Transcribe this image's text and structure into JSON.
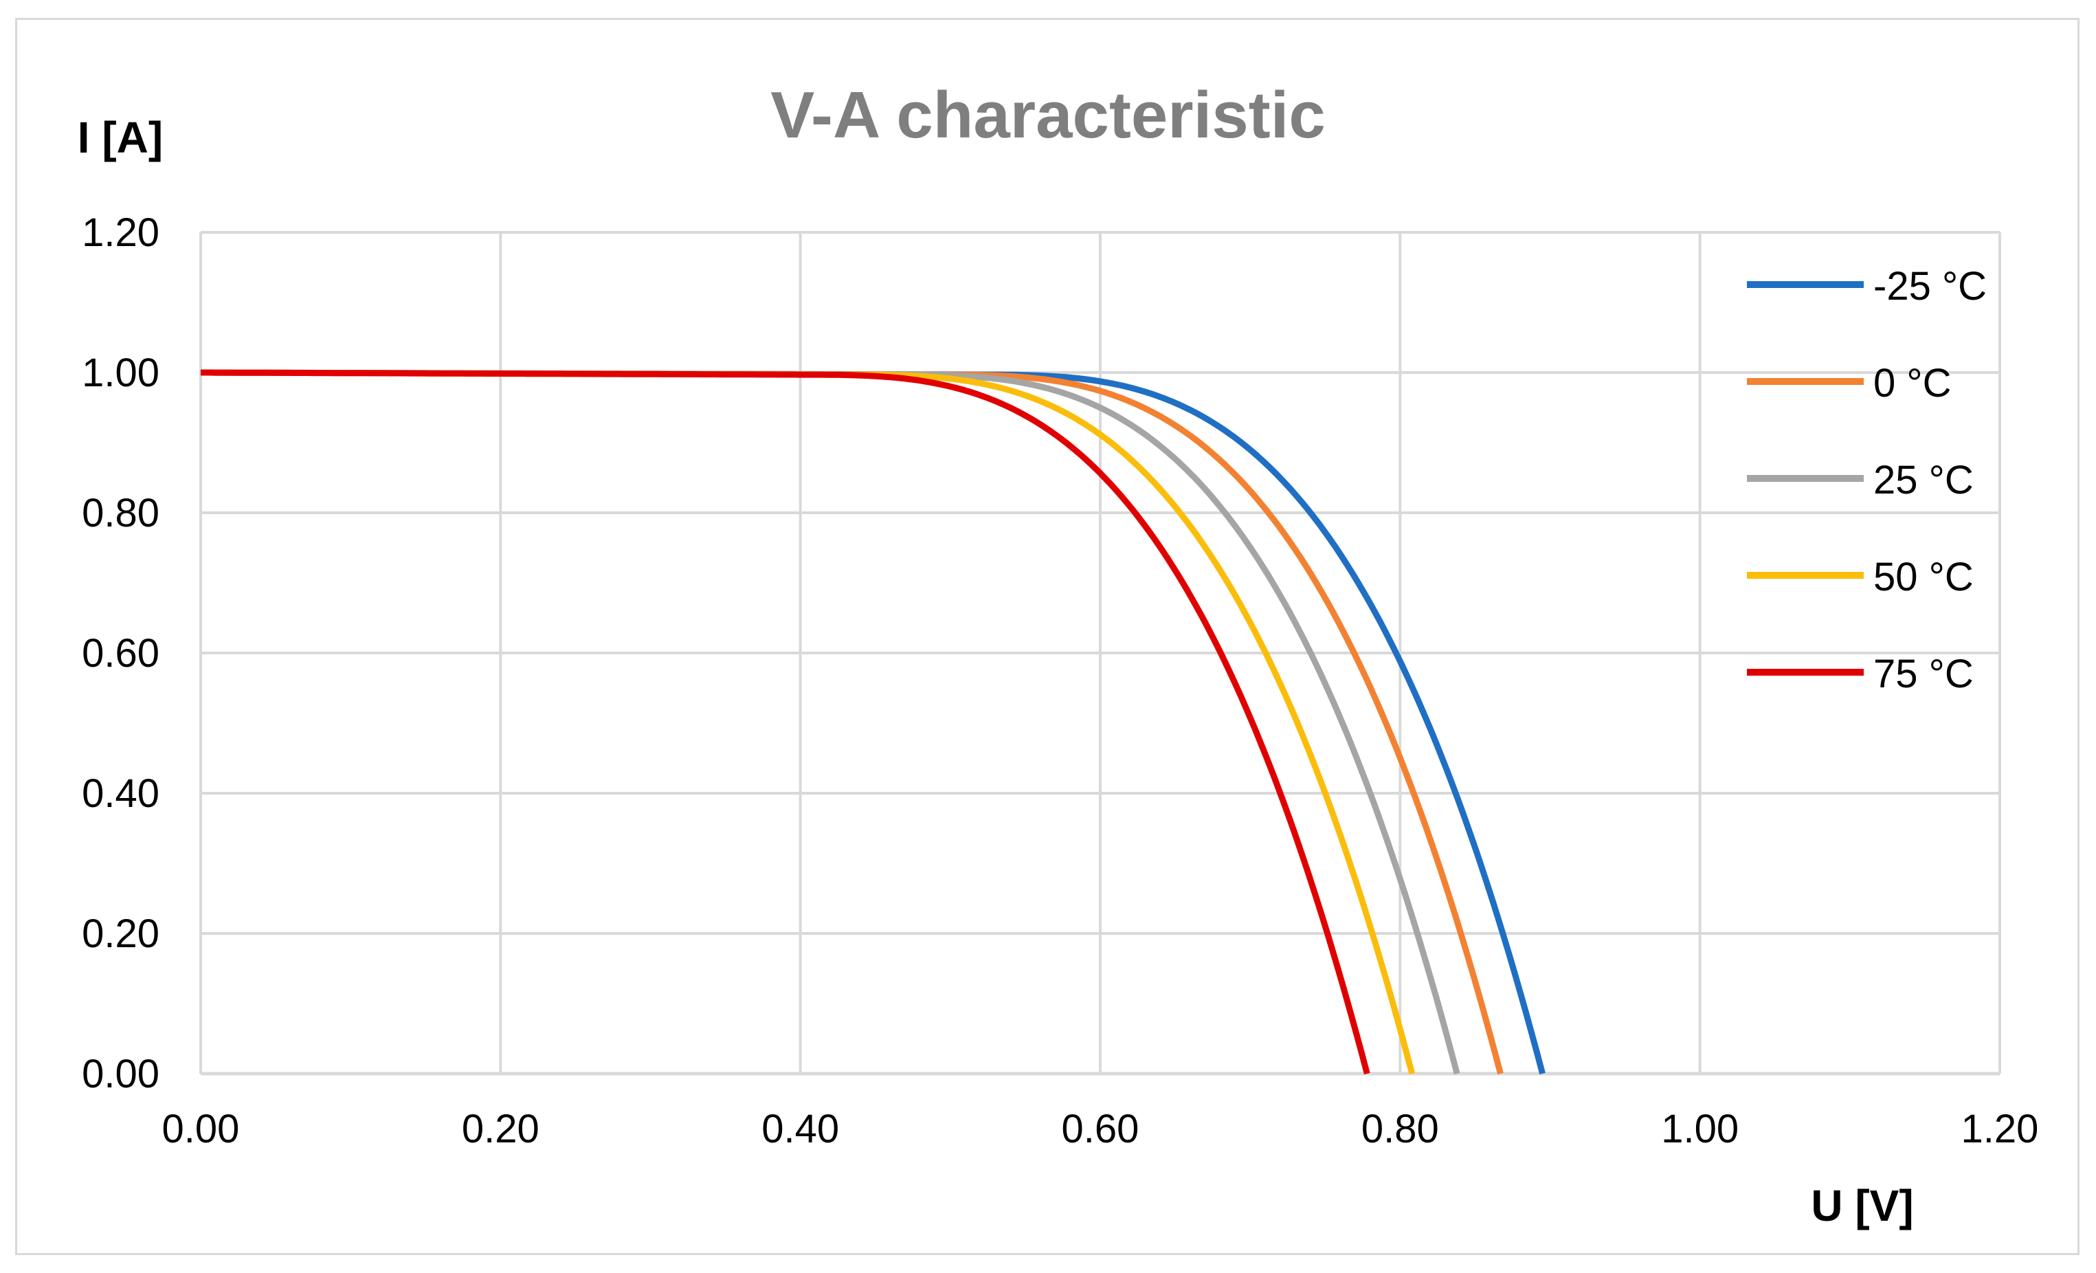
{
  "chart_data": {
    "type": "line",
    "title": "V-A characteristic",
    "xlabel": "U [V]",
    "ylabel": "I [A]",
    "xlim": [
      0,
      1.2
    ],
    "ylim": [
      0,
      1.2
    ],
    "xticks": [
      "0.00",
      "0.20",
      "0.40",
      "0.60",
      "0.80",
      "1.00",
      "1.20"
    ],
    "yticks": [
      "0.00",
      "0.20",
      "0.40",
      "0.60",
      "0.80",
      "1.00",
      "1.20"
    ],
    "grid": true,
    "legend_position": "right",
    "series": [
      {
        "name": "-25 °C",
        "color": "#1f6fc4",
        "isc": 1.0,
        "voc": 0.895,
        "knee": 0.715
      },
      {
        "name": "0 °C",
        "color": "#f28232",
        "isc": 1.0,
        "voc": 0.867,
        "knee": 0.687
      },
      {
        "name": "25 °C",
        "color": "#a5a5a5",
        "isc": 1.0,
        "voc": 0.838,
        "knee": 0.658
      },
      {
        "name": "50 °C",
        "color": "#fbbd0b",
        "isc": 1.0,
        "voc": 0.808,
        "knee": 0.628
      },
      {
        "name": "75 °C",
        "color": "#e00000",
        "isc": 1.0,
        "voc": 0.778,
        "knee": 0.598
      }
    ]
  }
}
